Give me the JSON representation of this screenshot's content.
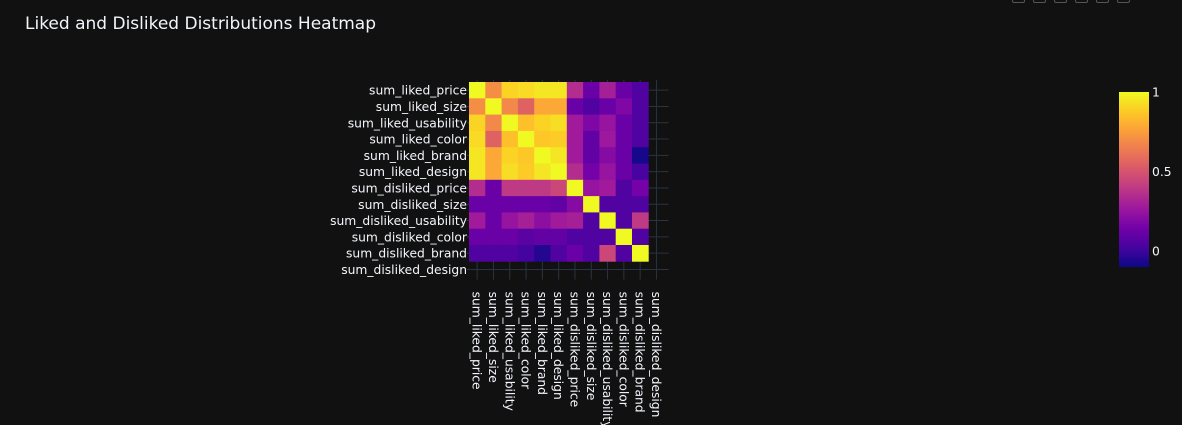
{
  "page": {
    "title": "Liked and Disliked Distributions Heatmap"
  },
  "modebar": {
    "icons": [
      "download-icon",
      "zoom-icon",
      "pan-icon",
      "zoom-in-icon",
      "zoom-out-icon",
      "reset-axes-icon"
    ]
  },
  "chart_data": {
    "type": "heatmap",
    "title": "Liked and Disliked Distributions Heatmap",
    "xlabel": "",
    "ylabel": "",
    "labels": [
      "sum_liked_price",
      "sum_liked_size",
      "sum_liked_usability",
      "sum_liked_color",
      "sum_liked_brand",
      "sum_liked_design",
      "sum_disliked_price",
      "sum_disliked_size",
      "sum_disliked_usability",
      "sum_disliked_color",
      "sum_disliked_brand",
      "sum_disliked_design"
    ],
    "z": [
      [
        1.0,
        0.7,
        0.9,
        0.92,
        0.95,
        0.95,
        0.35,
        0.12,
        0.3,
        0.12,
        0.05,
        null
      ],
      [
        0.7,
        1.0,
        0.68,
        0.55,
        0.78,
        0.78,
        0.12,
        0.05,
        0.12,
        0.18,
        0.05,
        null
      ],
      [
        0.9,
        0.68,
        1.0,
        0.85,
        0.9,
        0.93,
        0.28,
        0.18,
        0.25,
        0.12,
        0.05,
        null
      ],
      [
        0.92,
        0.55,
        0.85,
        1.0,
        0.87,
        0.88,
        0.28,
        0.1,
        0.27,
        0.12,
        0.05,
        null
      ],
      [
        0.95,
        0.78,
        0.9,
        0.87,
        1.0,
        0.95,
        0.28,
        0.1,
        0.2,
        0.12,
        -0.08,
        null
      ],
      [
        0.95,
        0.78,
        0.93,
        0.88,
        0.95,
        1.0,
        0.35,
        0.15,
        0.25,
        0.12,
        0.03,
        null
      ],
      [
        0.35,
        0.12,
        0.4,
        0.4,
        0.4,
        0.45,
        1.0,
        0.25,
        0.28,
        0.05,
        0.15,
        null
      ],
      [
        0.12,
        0.12,
        0.12,
        0.12,
        0.12,
        0.1,
        0.2,
        1.0,
        0.05,
        0.05,
        0.05,
        null
      ],
      [
        0.28,
        0.12,
        0.25,
        0.3,
        0.22,
        0.28,
        0.3,
        0.05,
        1.0,
        0.05,
        0.4,
        null
      ],
      [
        0.12,
        0.12,
        0.12,
        0.08,
        0.1,
        0.1,
        0.05,
        0.05,
        0.05,
        1.0,
        0.05,
        null
      ],
      [
        0.05,
        0.05,
        0.05,
        0.02,
        -0.05,
        0.05,
        0.12,
        0.05,
        0.45,
        0.05,
        1.0,
        null
      ],
      [
        null,
        null,
        null,
        null,
        null,
        null,
        null,
        null,
        null,
        null,
        null,
        null
      ]
    ],
    "zmin": -0.1,
    "zmax": 1.0,
    "colorscale": [
      "#0d0887",
      "#46039f",
      "#7201a8",
      "#9c179e",
      "#bd3786",
      "#d8576b",
      "#ed7953",
      "#fb9f3a",
      "#fdca26",
      "#f0f921"
    ],
    "colorbar": {
      "ticks": [
        1,
        0.5,
        0
      ],
      "tick_labels": [
        "1",
        "0.5",
        "0"
      ]
    },
    "grid": true,
    "legend": "right (colorbar)"
  }
}
